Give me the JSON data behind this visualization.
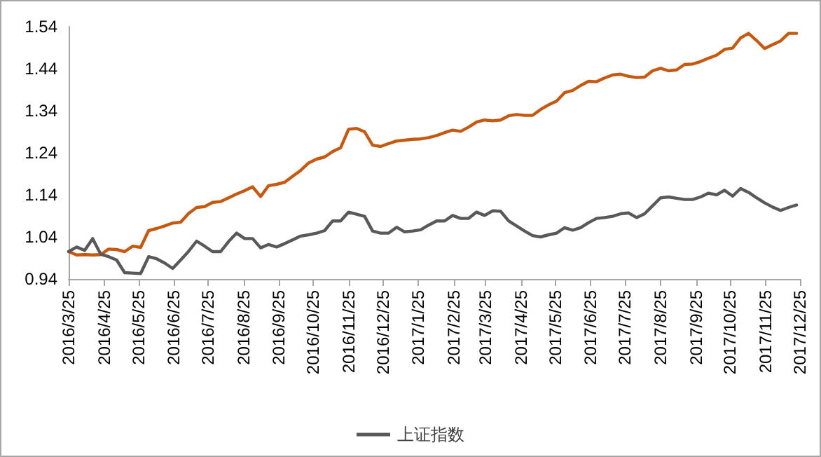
{
  "chart_data": {
    "type": "line",
    "x": [
      "2016-03-25",
      "2016-04-01",
      "2016-04-08",
      "2016-04-15",
      "2016-04-22",
      "2016-04-29",
      "2016-05-06",
      "2016-05-13",
      "2016-05-20",
      "2016-05-27",
      "2016-06-03",
      "2016-06-10",
      "2016-06-17",
      "2016-06-24",
      "2016-07-01",
      "2016-07-08",
      "2016-07-15",
      "2016-07-22",
      "2016-07-29",
      "2016-08-05",
      "2016-08-12",
      "2016-08-19",
      "2016-08-26",
      "2016-09-02",
      "2016-09-09",
      "2016-09-16",
      "2016-09-23",
      "2016-09-30",
      "2016-10-07",
      "2016-10-14",
      "2016-10-21",
      "2016-10-28",
      "2016-11-04",
      "2016-11-11",
      "2016-11-18",
      "2016-11-25",
      "2016-12-02",
      "2016-12-09",
      "2016-12-16",
      "2016-12-23",
      "2016-12-30",
      "2017-01-06",
      "2017-01-13",
      "2017-01-20",
      "2017-01-27",
      "2017-02-03",
      "2017-02-10",
      "2017-02-17",
      "2017-02-24",
      "2017-03-03",
      "2017-03-10",
      "2017-03-17",
      "2017-03-24",
      "2017-03-31",
      "2017-04-07",
      "2017-04-14",
      "2017-04-21",
      "2017-04-28",
      "2017-05-05",
      "2017-05-12",
      "2017-05-19",
      "2017-05-26",
      "2017-06-02",
      "2017-06-09",
      "2017-06-16",
      "2017-06-23",
      "2017-06-30",
      "2017-07-07",
      "2017-07-14",
      "2017-07-21",
      "2017-07-28",
      "2017-08-04",
      "2017-08-11",
      "2017-08-18",
      "2017-08-25",
      "2017-09-01",
      "2017-09-08",
      "2017-09-15",
      "2017-09-22",
      "2017-09-29",
      "2017-10-06",
      "2017-10-13",
      "2017-10-20",
      "2017-10-27",
      "2017-11-03",
      "2017-11-10",
      "2017-11-17",
      "2017-11-24",
      "2017-12-01",
      "2017-12-08",
      "2017-12-15",
      "2017-12-22"
    ],
    "series": [
      {
        "color": "#c65911",
        "values": [
          1.005,
          0.997,
          0.998,
          0.997,
          0.998,
          1.011,
          1.01,
          1.005,
          1.018,
          1.015,
          1.055,
          1.06,
          1.066,
          1.073,
          1.075,
          1.096,
          1.11,
          1.112,
          1.122,
          1.124,
          1.133,
          1.142,
          1.15,
          1.159,
          1.136,
          1.162,
          1.165,
          1.17,
          1.184,
          1.198,
          1.216,
          1.225,
          1.23,
          1.243,
          1.252,
          1.296,
          1.298,
          1.29,
          1.258,
          1.255,
          1.262,
          1.268,
          1.27,
          1.272,
          1.273,
          1.276,
          1.281,
          1.288,
          1.294,
          1.291,
          1.301,
          1.313,
          1.318,
          1.316,
          1.318,
          1.328,
          1.331,
          1.329,
          1.329,
          1.343,
          1.354,
          1.363,
          1.383,
          1.388,
          1.4,
          1.41,
          1.409,
          1.418,
          1.425,
          1.427,
          1.422,
          1.419,
          1.42,
          1.435,
          1.441,
          1.435,
          1.437,
          1.45,
          1.451,
          1.457,
          1.465,
          1.472,
          1.486,
          1.489,
          1.513,
          1.524,
          1.507,
          1.488,
          1.497,
          1.506,
          1.524,
          1.524
        ]
      },
      {
        "name": "上证指数",
        "color": "#595959",
        "values": [
          1.005,
          1.016,
          1.008,
          1.036,
          0.999,
          0.993,
          0.985,
          0.955,
          0.954,
          0.953,
          0.993,
          0.988,
          0.978,
          0.965,
          0.985,
          1.006,
          1.03,
          1.018,
          1.005,
          1.005,
          1.029,
          1.049,
          1.036,
          1.036,
          1.014,
          1.022,
          1.016,
          1.024,
          1.033,
          1.042,
          1.045,
          1.049,
          1.055,
          1.078,
          1.078,
          1.099,
          1.094,
          1.089,
          1.054,
          1.049,
          1.049,
          1.063,
          1.052,
          1.054,
          1.057,
          1.068,
          1.078,
          1.078,
          1.091,
          1.084,
          1.084,
          1.099,
          1.091,
          1.102,
          1.101,
          1.078,
          1.066,
          1.054,
          1.043,
          1.04,
          1.045,
          1.049,
          1.062,
          1.056,
          1.062,
          1.074,
          1.084,
          1.086,
          1.089,
          1.095,
          1.097,
          1.086,
          1.095,
          1.114,
          1.133,
          1.135,
          1.132,
          1.129,
          1.129,
          1.135,
          1.144,
          1.14,
          1.151,
          1.137,
          1.155,
          1.146,
          1.133,
          1.121,
          1.111,
          1.103,
          1.11,
          1.116
        ]
      }
    ],
    "xlim": [
      "2016-03-25",
      "2017-12-25"
    ],
    "xticks": [
      {
        "value": "2016-03-25",
        "label": "2016/3/25"
      },
      {
        "value": "2016-04-25",
        "label": "2016/4/25"
      },
      {
        "value": "2016-05-25",
        "label": "2016/5/25"
      },
      {
        "value": "2016-06-25",
        "label": "2016/6/25"
      },
      {
        "value": "2016-07-25",
        "label": "2016/7/25"
      },
      {
        "value": "2016-08-25",
        "label": "2016/8/25"
      },
      {
        "value": "2016-09-25",
        "label": "2016/9/25"
      },
      {
        "value": "2016-10-25",
        "label": "2016/10/25"
      },
      {
        "value": "2016-11-25",
        "label": "2016/11/25"
      },
      {
        "value": "2016-12-25",
        "label": "2016/12/25"
      },
      {
        "value": "2017-01-25",
        "label": "2017/1/25"
      },
      {
        "value": "2017-02-25",
        "label": "2017/2/25"
      },
      {
        "value": "2017-03-25",
        "label": "2017/3/25"
      },
      {
        "value": "2017-04-25",
        "label": "2017/4/25"
      },
      {
        "value": "2017-05-25",
        "label": "2017/5/25"
      },
      {
        "value": "2017-06-25",
        "label": "2017/6/25"
      },
      {
        "value": "2017-07-25",
        "label": "2017/7/25"
      },
      {
        "value": "2017-08-25",
        "label": "2017/8/25"
      },
      {
        "value": "2017-09-25",
        "label": "2017/9/25"
      },
      {
        "value": "2017-10-25",
        "label": "2017/10/25"
      },
      {
        "value": "2017-11-25",
        "label": "2017/11/25"
      },
      {
        "value": "2017-12-25",
        "label": "2017/12/25"
      }
    ],
    "ylim": [
      0.94,
      1.54
    ],
    "yticks": [
      0.94,
      1.04,
      1.14,
      1.24,
      1.34,
      1.44,
      1.54
    ],
    "grid": false,
    "legend": "bottom",
    "marker": "none",
    "line_style": "solid"
  }
}
